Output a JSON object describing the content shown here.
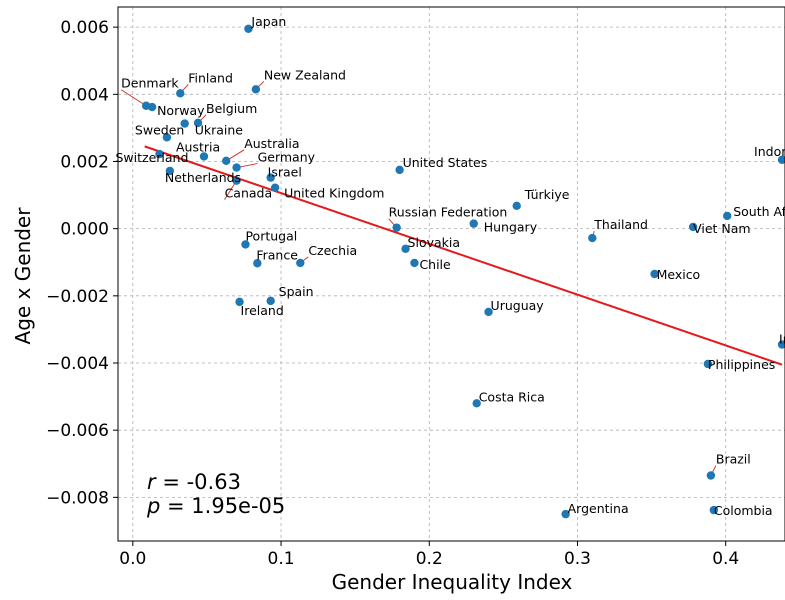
{
  "chart_data": {
    "type": "scatter",
    "title": "",
    "xlabel": "Gender Inequality Index",
    "ylabel": "Age x Gender",
    "xlim": [
      -0.01,
      0.44
    ],
    "ylim": [
      -0.0093,
      0.0066
    ],
    "xticks": [
      "0.0",
      "0.1",
      "0.2",
      "0.3",
      "0.4"
    ],
    "xtick_values": [
      0.0,
      0.1,
      0.2,
      0.3,
      0.4
    ],
    "yticks": [
      "0.006",
      "0.004",
      "0.002",
      "0.000",
      "−0.002",
      "−0.004",
      "−0.006",
      "−0.008"
    ],
    "ytick_values": [
      0.006,
      0.004,
      0.002,
      0.0,
      -0.002,
      -0.004,
      -0.006,
      -0.008
    ],
    "grid": true,
    "point_color": "#1f77b4",
    "fit_color": "#e41a1c",
    "label_line_color": "#d62728",
    "fit_line": {
      "x": [
        0.008,
        0.438
      ],
      "y": [
        0.00245,
        -0.00405
      ]
    },
    "annotations": {
      "r": "-0.63",
      "p": "1.95e-05"
    },
    "points": [
      {
        "name": "Japan",
        "x": 0.078,
        "y": 0.00595
      },
      {
        "name": "Finland",
        "x": 0.032,
        "y": 0.00403
      },
      {
        "name": "New Zealand",
        "x": 0.083,
        "y": 0.00415
      },
      {
        "name": "Denmark",
        "x": 0.009,
        "y": 0.00366
      },
      {
        "name": "Norway",
        "x": 0.013,
        "y": 0.00362
      },
      {
        "name": "Belgium",
        "x": 0.044,
        "y": 0.00315
      },
      {
        "name": "Ukraine",
        "x": 0.035,
        "y": 0.00313
      },
      {
        "name": "Sweden",
        "x": 0.023,
        "y": 0.00272
      },
      {
        "name": "Australia",
        "x": 0.063,
        "y": 0.00202
      },
      {
        "name": "Austria",
        "x": 0.048,
        "y": 0.00215
      },
      {
        "name": "Switzerland",
        "x": 0.018,
        "y": 0.00222
      },
      {
        "name": "Germany",
        "x": 0.07,
        "y": 0.00182
      },
      {
        "name": "Israel",
        "x": 0.093,
        "y": 0.00152
      },
      {
        "name": "Netherlands",
        "x": 0.025,
        "y": 0.00172
      },
      {
        "name": "Canada",
        "x": 0.07,
        "y": 0.00143
      },
      {
        "name": "United Kingdom",
        "x": 0.096,
        "y": 0.00122
      },
      {
        "name": "United States",
        "x": 0.18,
        "y": 0.00175
      },
      {
        "name": "Indonesia",
        "x": 0.438,
        "y": 0.00205
      },
      {
        "name": "Türkiye",
        "x": 0.259,
        "y": 0.00068
      },
      {
        "name": "South Africa",
        "x": 0.401,
        "y": 0.00038
      },
      {
        "name": "Russian Federation",
        "x": 0.178,
        "y": 3e-05
      },
      {
        "name": "Hungary",
        "x": 0.23,
        "y": 0.00015
      },
      {
        "name": "Viet Nam",
        "x": 0.378,
        "y": 5e-05
      },
      {
        "name": "Thailand",
        "x": 0.31,
        "y": -0.00028
      },
      {
        "name": "Portugal",
        "x": 0.076,
        "y": -0.00047
      },
      {
        "name": "Slovakia",
        "x": 0.184,
        "y": -0.0006
      },
      {
        "name": "France",
        "x": 0.084,
        "y": -0.00103
      },
      {
        "name": "Czechia",
        "x": 0.113,
        "y": -0.00102
      },
      {
        "name": "Chile",
        "x": 0.19,
        "y": -0.00102
      },
      {
        "name": "Mexico",
        "x": 0.352,
        "y": -0.00135
      },
      {
        "name": "Spain",
        "x": 0.093,
        "y": -0.00215
      },
      {
        "name": "Ireland",
        "x": 0.072,
        "y": -0.00218
      },
      {
        "name": "Uruguay",
        "x": 0.24,
        "y": -0.00248
      },
      {
        "name": "India",
        "x": 0.438,
        "y": -0.00345
      },
      {
        "name": "Philippines",
        "x": 0.388,
        "y": -0.00403
      },
      {
        "name": "Costa Rica",
        "x": 0.232,
        "y": -0.0052
      },
      {
        "name": "Brazil",
        "x": 0.39,
        "y": -0.00735
      },
      {
        "name": "Argentina",
        "x": 0.292,
        "y": -0.0085
      },
      {
        "name": "Colombia",
        "x": 0.392,
        "y": -0.00838
      }
    ]
  }
}
